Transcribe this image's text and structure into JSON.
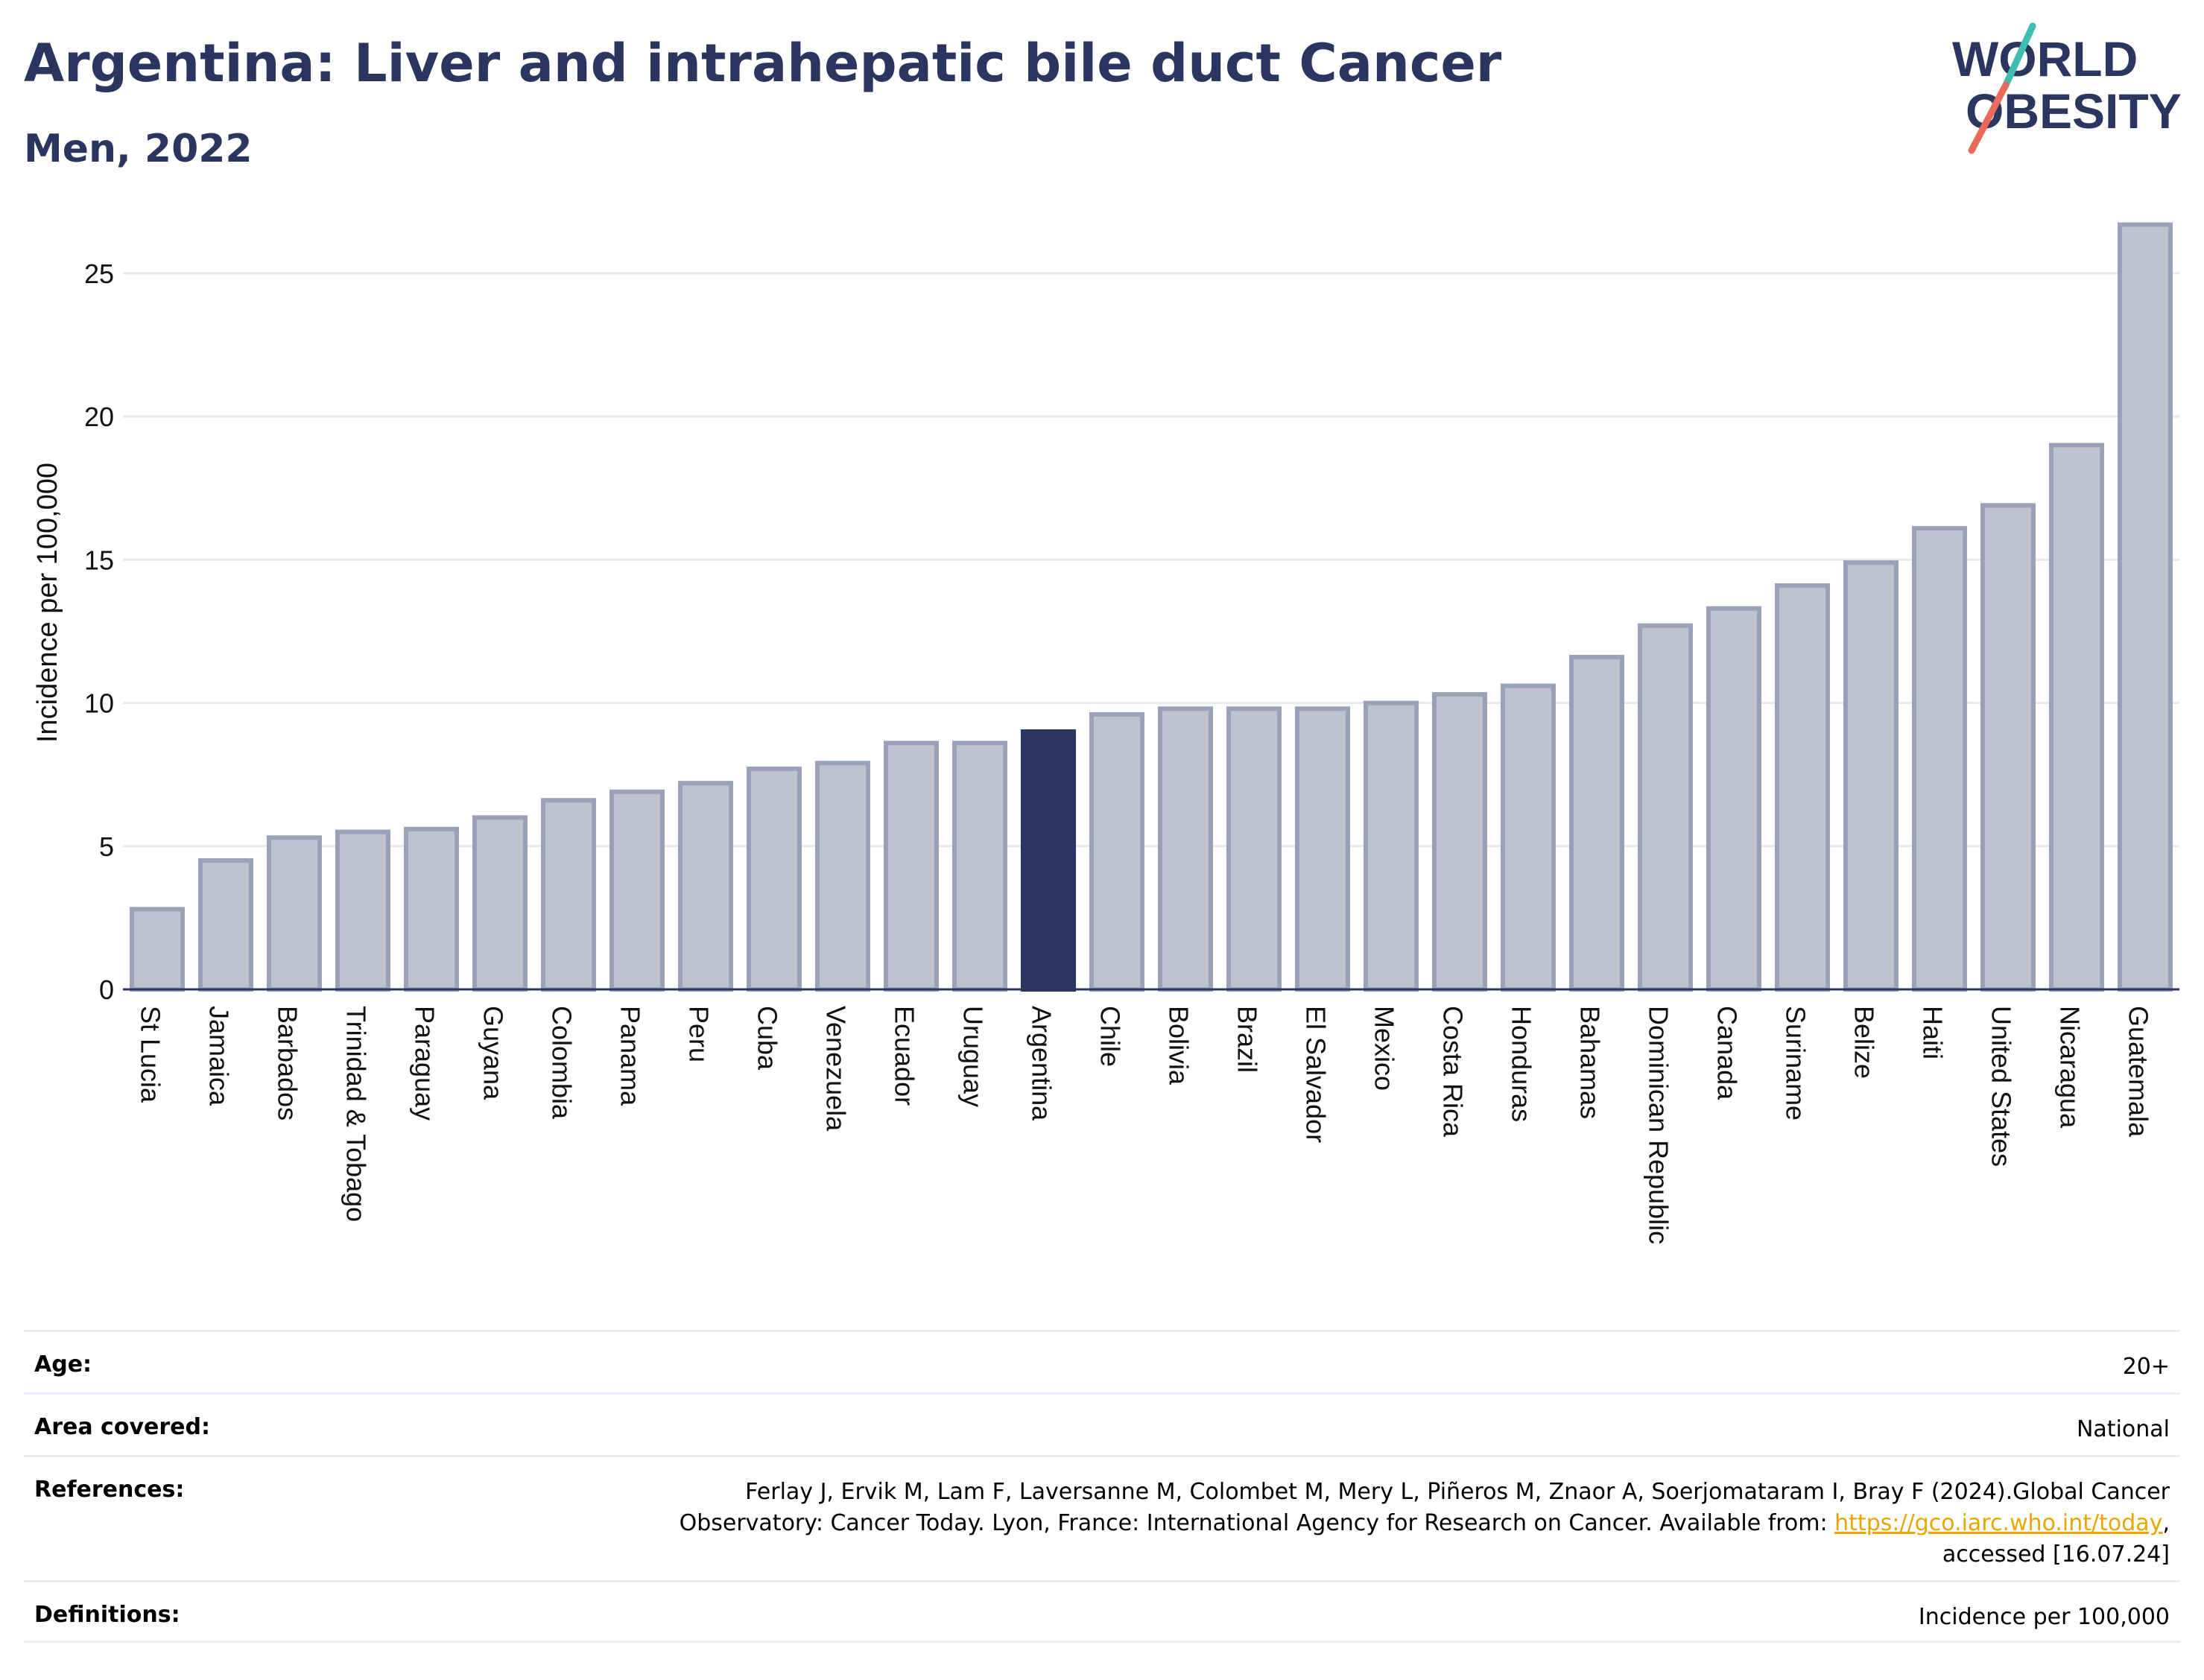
{
  "header": {
    "title": "Argentina: Liver and intrahepatic bile duct Cancer",
    "subtitle": "Men, 2022"
  },
  "logo": {
    "line1": "WORLD",
    "line2": "OBESITY",
    "accent_colors": [
      "#3cbfb0",
      "#e9695b"
    ]
  },
  "chart_data": {
    "type": "bar",
    "title": "Argentina: Liver and intrahepatic bile duct Cancer",
    "subtitle": "Men, 2022",
    "xlabel": "",
    "ylabel": "Incidence per 100,000",
    "ylim": [
      0,
      27
    ],
    "yticks": [
      0,
      5,
      10,
      15,
      20,
      25
    ],
    "grid": true,
    "highlight": "Argentina",
    "colors": {
      "bar": "#bec2cf",
      "bar_edge": "#9aa1b9",
      "highlight": "#2b3660",
      "grid": "#e6e8ee"
    },
    "categories": [
      "St Lucia",
      "Jamaica",
      "Barbados",
      "Trinidad & Tobago",
      "Paraguay",
      "Guyana",
      "Colombia",
      "Panama",
      "Peru",
      "Cuba",
      "Venezuela",
      "Ecuador",
      "Uruguay",
      "Argentina",
      "Chile",
      "Bolivia",
      "Brazil",
      "El Salvador",
      "Mexico",
      "Costa Rica",
      "Honduras",
      "Bahamas",
      "Dominican Republic",
      "Canada",
      "Suriname",
      "Belize",
      "Haiti",
      "United States",
      "Nicaragua",
      "Guatemala"
    ],
    "values": [
      2.8,
      4.5,
      5.3,
      5.5,
      5.6,
      6.0,
      6.6,
      6.9,
      7.2,
      7.7,
      7.9,
      8.6,
      8.6,
      9.0,
      9.6,
      9.8,
      9.8,
      9.8,
      10.0,
      10.3,
      10.6,
      11.6,
      12.7,
      13.3,
      14.1,
      14.9,
      16.1,
      16.9,
      19.0,
      26.7
    ]
  },
  "metadata": {
    "rows": [
      {
        "label": "Age:",
        "value": "20+"
      },
      {
        "label": "Area covered:",
        "value": "National"
      },
      {
        "label": "References:",
        "value_before": "Ferlay J, Ervik M, Lam F, Laversanne M, Colombet M, Mery L, Piñeros M, Znaor A, Soerjomataram I, Bray F (2024).Global Cancer Observatory: Cancer Today. Lyon, France: International Agency for Research on Cancer. Available from: ",
        "link": "https://gco.iarc.who.int/today",
        "value_after": ", accessed [16.07.24]"
      },
      {
        "label": "Definitions:",
        "value": "Incidence per 100,000"
      }
    ]
  }
}
